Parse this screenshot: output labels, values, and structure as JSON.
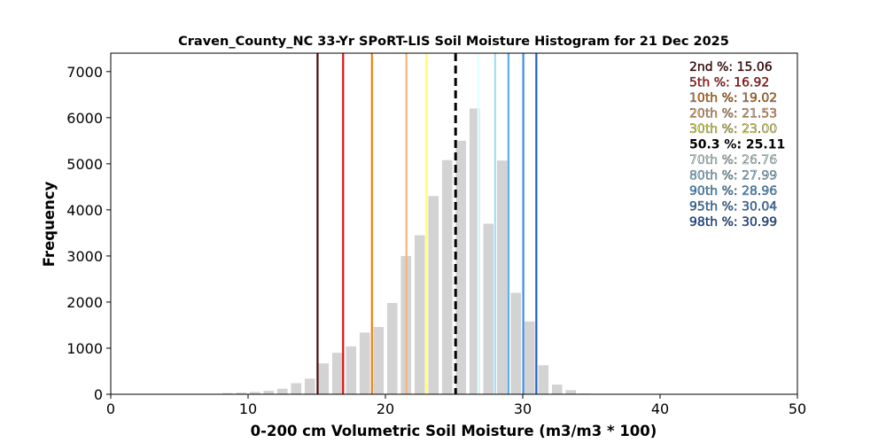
{
  "chart_data": {
    "type": "bar",
    "title": "Craven_County_NC 33-Yr SPoRT-LIS Soil Moisture Histogram for 21 Dec 2025",
    "xlabel": "0-200 cm Volumetric Soil Moisture (m3/m3 * 100)",
    "ylabel": "Frequency",
    "xlim": [
      0,
      50
    ],
    "ylim": [
      0,
      7400
    ],
    "x_ticks": [
      0,
      10,
      20,
      30,
      40,
      50
    ],
    "y_ticks": [
      0,
      1000,
      2000,
      3000,
      4000,
      5000,
      6000,
      7000
    ],
    "grid": false,
    "bar_color": "#d3d3d3",
    "bin_width": 1,
    "bins": [
      {
        "x": 6.5,
        "y": 2
      },
      {
        "x": 7.5,
        "y": 10
      },
      {
        "x": 8.5,
        "y": 25
      },
      {
        "x": 9.5,
        "y": 35
      },
      {
        "x": 10.5,
        "y": 50
      },
      {
        "x": 11.5,
        "y": 75
      },
      {
        "x": 12.5,
        "y": 120
      },
      {
        "x": 13.5,
        "y": 240
      },
      {
        "x": 14.5,
        "y": 340
      },
      {
        "x": 15.5,
        "y": 670
      },
      {
        "x": 16.5,
        "y": 900
      },
      {
        "x": 17.5,
        "y": 1040
      },
      {
        "x": 18.5,
        "y": 1340
      },
      {
        "x": 19.5,
        "y": 1460
      },
      {
        "x": 20.5,
        "y": 1980
      },
      {
        "x": 21.5,
        "y": 3000
      },
      {
        "x": 22.5,
        "y": 3450
      },
      {
        "x": 23.5,
        "y": 4300
      },
      {
        "x": 24.5,
        "y": 5080
      },
      {
        "x": 25.5,
        "y": 5500
      },
      {
        "x": 26.5,
        "y": 6200
      },
      {
        "x": 27.5,
        "y": 3700
      },
      {
        "x": 28.5,
        "y": 5070
      },
      {
        "x": 29.5,
        "y": 2200
      },
      {
        "x": 30.5,
        "y": 1580
      },
      {
        "x": 31.5,
        "y": 630
      },
      {
        "x": 32.5,
        "y": 210
      },
      {
        "x": 33.5,
        "y": 90
      },
      {
        "x": 34.5,
        "y": 15
      }
    ],
    "percentiles": [
      {
        "label": "2nd %: 15.06",
        "value": 15.06,
        "color": "#4b0a0a",
        "style": "solid"
      },
      {
        "label": "5th %: 16.92",
        "value": 16.92,
        "color": "#dc1010",
        "style": "solid"
      },
      {
        "label": "10th %: 19.02",
        "value": 19.02,
        "color": "#f08010",
        "style": "solid"
      },
      {
        "label": "20th %: 21.53",
        "value": 21.53,
        "color": "#f8b47a",
        "style": "solid"
      },
      {
        "label": "30th %: 23.00",
        "value": 23.0,
        "color": "#ffff60",
        "style": "solid"
      },
      {
        "label": "50.3 %: 25.11",
        "value": 25.11,
        "color": "#000000",
        "style": "dashed"
      },
      {
        "label": "70th %: 26.76",
        "value": 26.76,
        "color": "#e0ffff",
        "style": "solid"
      },
      {
        "label": "80th %: 27.99",
        "value": 27.99,
        "color": "#a6dcf7",
        "style": "solid"
      },
      {
        "label": "90th %: 28.96",
        "value": 28.96,
        "color": "#5aaef0",
        "style": "solid"
      },
      {
        "label": "95th %: 30.04",
        "value": 30.04,
        "color": "#3c8ee6",
        "style": "solid"
      },
      {
        "label": "98th %: 30.99",
        "value": 30.99,
        "color": "#1e60c8",
        "style": "solid"
      }
    ],
    "legend_position": "top-right"
  }
}
